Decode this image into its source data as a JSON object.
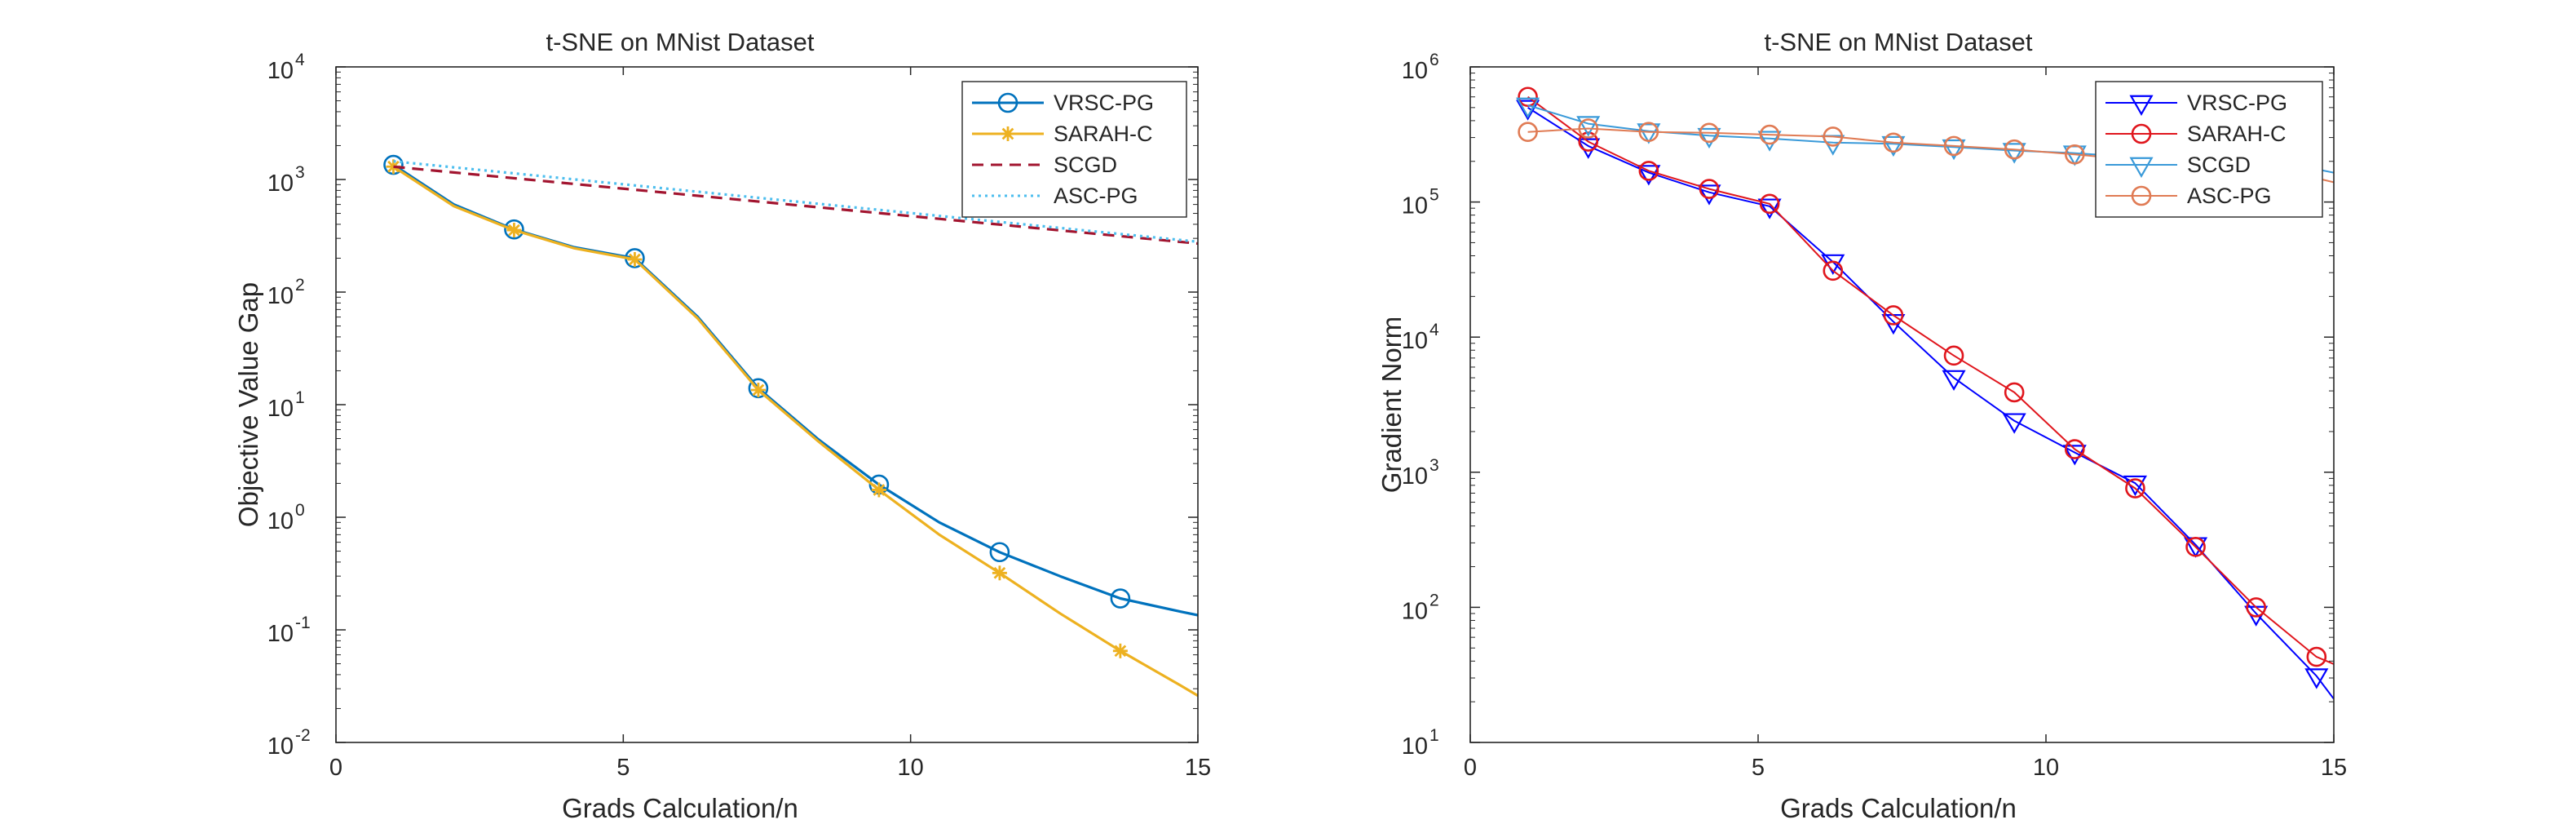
{
  "chart_data": [
    {
      "type": "line",
      "title": "t-SNE on MNist Dataset",
      "xlabel": "Grads Calculation/n",
      "ylabel": "Objective Value Gap",
      "xlim": [
        0,
        15
      ],
      "ylim": [
        0.01,
        10000
      ],
      "yscale": "log",
      "xticks": [
        0,
        5,
        10,
        15
      ],
      "xtick_labels": [
        "0",
        "5",
        "10",
        "15"
      ],
      "yticks": [
        0.01,
        0.1,
        1,
        10,
        100,
        1000,
        10000
      ],
      "ytick_base": [
        "10",
        "10",
        "10",
        "10",
        "10",
        "10",
        "10"
      ],
      "ytick_exp": [
        "-2",
        "-1",
        "0",
        "1",
        "2",
        "3",
        "4"
      ],
      "legend_position": "top-right",
      "grid": false,
      "series": [
        {
          "name": "VRSC-PG",
          "color": "#0072BD",
          "dash": "solid",
          "marker": "circle",
          "x": [
            1,
            2.05,
            3.1,
            4.15,
            5.2,
            6.3,
            7.35,
            8.4,
            9.45,
            10.5,
            11.55,
            12.6,
            13.65,
            14.7,
            15
          ],
          "y": [
            1350,
            600,
            360,
            250,
            200,
            60,
            14,
            4.9,
            1.95,
            0.9,
            0.49,
            0.3,
            0.19,
            0.145,
            0.135
          ],
          "marker_idx": [
            0,
            2,
            4,
            6,
            8,
            10,
            12
          ]
        },
        {
          "name": "SARAH-C",
          "color": "#EDB120",
          "dash": "solid",
          "marker": "star",
          "x": [
            1,
            2.05,
            3.1,
            4.15,
            5.2,
            6.3,
            7.35,
            8.4,
            9.45,
            10.5,
            11.55,
            12.6,
            13.65,
            14.7,
            15
          ],
          "y": [
            1300,
            580,
            355,
            245,
            195,
            58,
            13.5,
            4.7,
            1.75,
            0.7,
            0.32,
            0.14,
            0.065,
            0.032,
            0.026
          ],
          "marker_idx": [
            0,
            2,
            4,
            6,
            8,
            10,
            12
          ]
        },
        {
          "name": "SCGD",
          "color": "#A2142F",
          "dash": "dashed",
          "marker": "none",
          "x": [
            1,
            15
          ],
          "y": [
            1300,
            270
          ],
          "marker_idx": []
        },
        {
          "name": "ASC-PG",
          "color": "#4DBEEE",
          "dash": "dotted",
          "marker": "none",
          "x": [
            1,
            15
          ],
          "y": [
            1450,
            280
          ],
          "marker_idx": []
        }
      ]
    },
    {
      "type": "line",
      "title": "t-SNE on MNist Dataset",
      "xlabel": "Grads Calculation/n",
      "ylabel": "Gradient Norm",
      "xlim": [
        0,
        15
      ],
      "ylim": [
        10,
        1000000
      ],
      "yscale": "log",
      "xticks": [
        0,
        5,
        10,
        15
      ],
      "xtick_labels": [
        "0",
        "5",
        "10",
        "15"
      ],
      "yticks": [
        10,
        100,
        1000,
        10000,
        100000,
        1000000
      ],
      "ytick_base": [
        "10",
        "10",
        "10",
        "10",
        "10",
        "10"
      ],
      "ytick_exp": [
        "1",
        "2",
        "3",
        "4",
        "5",
        "6"
      ],
      "legend_position": "top-right",
      "grid": false,
      "series": [
        {
          "name": "VRSC-PG",
          "color": "#0000FF",
          "dash": "solid",
          "marker": "triangle-down",
          "x": [
            1,
            2.05,
            3.1,
            4.15,
            5.2,
            6.3,
            7.35,
            8.4,
            9.45,
            10.5,
            11.55,
            12.6,
            13.65,
            14.7,
            15
          ],
          "y": [
            500000,
            260000,
            165000,
            118000,
            93000,
            36000,
            13000,
            5000,
            2400,
            1400,
            830,
            290,
            90,
            31,
            21
          ],
          "marker_idx": [
            0,
            1,
            2,
            3,
            4,
            5,
            6,
            7,
            8,
            9,
            10,
            11,
            12,
            13
          ]
        },
        {
          "name": "SARAH-C",
          "color": "#E0161D",
          "dash": "solid",
          "marker": "circle",
          "x": [
            1,
            2.05,
            3.1,
            4.15,
            5.2,
            6.3,
            7.35,
            8.4,
            9.45,
            10.5,
            11.55,
            12.6,
            13.65,
            14.7,
            15
          ],
          "y": [
            600000,
            280000,
            170000,
            125000,
            97000,
            31000,
            14500,
            7300,
            3900,
            1480,
            760,
            280,
            100,
            43,
            38
          ],
          "marker_idx": [
            0,
            1,
            2,
            3,
            4,
            5,
            6,
            7,
            8,
            9,
            10,
            11,
            12,
            13
          ]
        },
        {
          "name": "SCGD",
          "color": "#3A9AD9",
          "dash": "solid",
          "marker": "triangle-down",
          "x": [
            1,
            2.05,
            3.1,
            4.15,
            5.2,
            6.3,
            7.35,
            8.4,
            9.45,
            10.5,
            11.55,
            12.6,
            13.65,
            14.7,
            15
          ],
          "y": [
            520000,
            380000,
            335000,
            310000,
            295000,
            275000,
            270000,
            255000,
            240000,
            230000,
            215000,
            200000,
            190000,
            175000,
            165000
          ],
          "marker_idx": [
            0,
            1,
            2,
            3,
            4,
            5,
            6,
            7,
            8,
            9
          ]
        },
        {
          "name": "ASC-PG",
          "color": "#E07B54",
          "dash": "solid",
          "marker": "circle",
          "x": [
            1,
            2.05,
            3.1,
            4.15,
            5.2,
            6.3,
            7.35,
            8.4,
            9.45,
            10.5,
            11.55,
            12.6,
            13.65,
            14.7,
            15
          ],
          "y": [
            330000,
            350000,
            330000,
            325000,
            315000,
            305000,
            275000,
            260000,
            245000,
            225000,
            205000,
            185000,
            170000,
            150000,
            140000
          ],
          "marker_idx": [
            0,
            1,
            2,
            3,
            4,
            5,
            6,
            7,
            8,
            9
          ]
        }
      ]
    }
  ]
}
